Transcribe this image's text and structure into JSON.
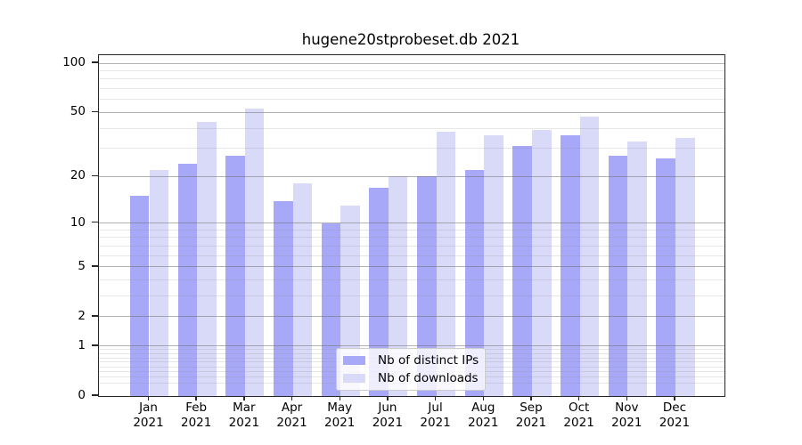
{
  "chart_data": {
    "type": "bar",
    "title": "hugene20stprobeset.db 2021",
    "categories": [
      "Jan",
      "Feb",
      "Mar",
      "Apr",
      "May",
      "Jun",
      "Jul",
      "Aug",
      "Sep",
      "Oct",
      "Nov",
      "Dec"
    ],
    "category_year": "2021",
    "series": [
      {
        "name": "Nb of distinct IPs",
        "color": "#a8a8f8",
        "values": [
          15,
          24,
          27,
          14,
          10,
          17,
          20,
          22,
          31,
          36,
          27,
          26
        ]
      },
      {
        "name": "Nb of downloads",
        "color": "#d9d9f8",
        "values": [
          22,
          44,
          53,
          18,
          13,
          20,
          38,
          36,
          39,
          47,
          33,
          35
        ]
      }
    ],
    "yscale": "log1p",
    "ylim": [
      0,
      112
    ],
    "y_major_ticks": [
      0,
      1,
      2,
      5,
      10,
      20,
      50,
      100
    ],
    "y_major_gridlines": [
      1,
      2,
      5,
      10,
      20,
      50,
      100
    ],
    "y_minor_gridlines": [
      0.2,
      0.3,
      0.4,
      0.5,
      0.6,
      0.7,
      0.8,
      0.9,
      3,
      4,
      6,
      7,
      8,
      9,
      30,
      40,
      60,
      70,
      80,
      90
    ],
    "grid": true,
    "legend_position": "lower center",
    "xlabel": "",
    "ylabel": ""
  },
  "colors": {
    "spine": "#262626",
    "tick_text": "#000000",
    "legend_border": "#cccccc"
  }
}
